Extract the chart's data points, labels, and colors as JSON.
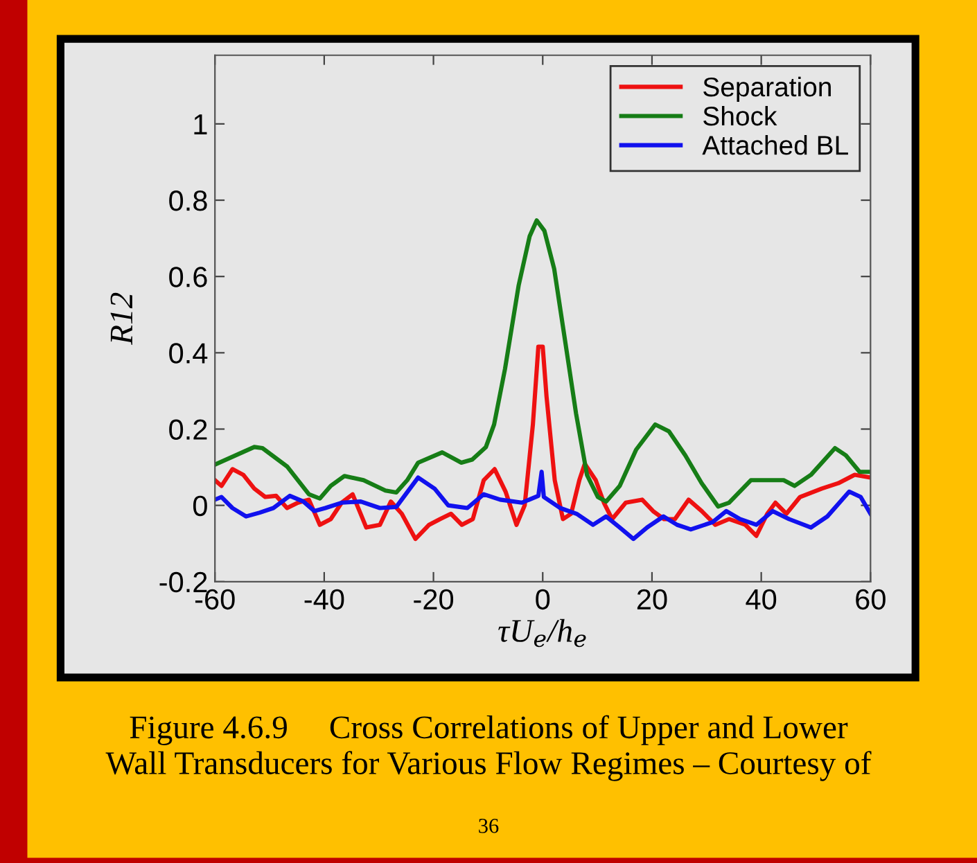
{
  "chart_data": {
    "type": "line",
    "xlabel": "τU$_{e}$/h$_{e}$",
    "ylabel": "R12",
    "xlim": [
      -60,
      60
    ],
    "xticks": [
      -60,
      -40,
      -20,
      0,
      20,
      40,
      60
    ],
    "ylim": [
      -0.2,
      1.18
    ],
    "yticks": [
      -0.2,
      0,
      0.2,
      0.4,
      0.6,
      0.8,
      1
    ],
    "grid": false,
    "legend": "top right",
    "line_style": "solid",
    "marker": "none",
    "annotations": [
      "Figure 4.6.9     Cross Correlations of Upper and Lower\nWall Transducers for Various Flow Regimes – Courtesy of",
      "36"
    ],
    "series": [
      {
        "name": "Separation",
        "color": "#ee1111",
        "x": [
          -60,
          -58.8,
          -56.8,
          -54.8,
          -52.8,
          -50.8,
          -48.8,
          -46.8,
          -44.8,
          -42.8,
          -40.8,
          -38.8,
          -36.8,
          -34.8,
          -32.3,
          -29.8,
          -27.8,
          -25.8,
          -23.3,
          -20.8,
          -18.8,
          -16.8,
          -14.8,
          -12.8,
          -10.8,
          -8.8,
          -6.8,
          -4.8,
          -3.3,
          -1.8,
          -0.8,
          0,
          0.7,
          2.2,
          3.7,
          5.2,
          6.7,
          7.7,
          9.7,
          11.2,
          12.7,
          15.2,
          18.2,
          20.2,
          22.2,
          24.2,
          26.7,
          29.1,
          31.6,
          34.1,
          37.1,
          39.1,
          41.1,
          42.6,
          44.6,
          47.1,
          51.1,
          54.1,
          57.1,
          60
        ],
        "values": [
          0.066,
          0.051,
          0.095,
          0.08,
          0.044,
          0.022,
          0.025,
          -0.007,
          0.007,
          0.015,
          -0.051,
          -0.036,
          0.007,
          0.029,
          -0.058,
          -0.051,
          0.01,
          -0.022,
          -0.088,
          -0.051,
          -0.036,
          -0.022,
          -0.051,
          -0.036,
          0.066,
          0.095,
          0.036,
          -0.051,
          0,
          0.212,
          0.416,
          0.416,
          0.285,
          0.066,
          -0.036,
          -0.022,
          0.066,
          0.109,
          0.066,
          0.007,
          -0.036,
          0.007,
          0.015,
          -0.015,
          -0.036,
          -0.036,
          0.015,
          -0.015,
          -0.051,
          -0.036,
          -0.051,
          -0.08,
          -0.022,
          0.007,
          -0.022,
          0.022,
          0.044,
          0.058,
          0.08,
          0.073
        ]
      },
      {
        "name": "Shock",
        "color": "#167d16",
        "x": [
          -60,
          -52.8,
          -51.3,
          -46.8,
          -42.8,
          -40.8,
          -38.8,
          -36.3,
          -32.8,
          -28.8,
          -26.8,
          -24.8,
          -22.8,
          -18.4,
          -14.9,
          -12.9,
          -10.4,
          -8.9,
          -6.9,
          -4.4,
          -2.4,
          -1.1,
          0.3,
          2.1,
          4.1,
          6.1,
          8.1,
          10.1,
          11.6,
          14.1,
          17.1,
          20.6,
          23.1,
          26.1,
          29.1,
          32.1,
          34.1,
          38.1,
          44.1,
          46.1,
          49.1,
          53.5,
          55.5,
          58,
          60
        ],
        "values": [
          0.107,
          0.153,
          0.15,
          0.102,
          0.029,
          0.018,
          0.051,
          0.077,
          0.066,
          0.039,
          0.034,
          0.066,
          0.112,
          0.139,
          0.112,
          0.12,
          0.153,
          0.212,
          0.358,
          0.577,
          0.705,
          0.747,
          0.72,
          0.62,
          0.431,
          0.241,
          0.08,
          0.022,
          0.01,
          0.051,
          0.146,
          0.212,
          0.194,
          0.131,
          0.058,
          -0.003,
          0.007,
          0.066,
          0.066,
          0.051,
          0.08,
          0.15,
          0.131,
          0.088,
          0.088
        ]
      },
      {
        "name": "Attached BL",
        "color": "#1111ee",
        "x": [
          -60,
          -58.8,
          -56.8,
          -54.3,
          -51.8,
          -49.3,
          -46.3,
          -43.8,
          -41.8,
          -39.8,
          -36.8,
          -33.3,
          -29.8,
          -26.8,
          -22.8,
          -19.8,
          -17.3,
          -13.8,
          -10.8,
          -7.8,
          -3.8,
          -0.8,
          -0.2,
          0.2,
          3.2,
          6.2,
          9.2,
          11.6,
          14.1,
          16.6,
          19.1,
          22.1,
          24.6,
          27.1,
          31.1,
          33.6,
          36.1,
          39.1,
          42.1,
          45.1,
          49.1,
          52.1,
          56.1,
          58.2,
          60
        ],
        "values": [
          0.015,
          0.022,
          -0.007,
          -0.029,
          -0.019,
          -0.007,
          0.025,
          0.01,
          -0.015,
          -0.007,
          0.007,
          0.01,
          -0.007,
          -0.004,
          0.073,
          0.044,
          0,
          -0.007,
          0.029,
          0.015,
          0.007,
          0.025,
          0.088,
          0.022,
          -0.007,
          -0.022,
          -0.051,
          -0.029,
          -0.058,
          -0.088,
          -0.058,
          -0.029,
          -0.051,
          -0.063,
          -0.044,
          -0.015,
          -0.036,
          -0.051,
          -0.015,
          -0.036,
          -0.058,
          -0.029,
          0.036,
          0.022,
          -0.022
        ]
      }
    ]
  }
}
